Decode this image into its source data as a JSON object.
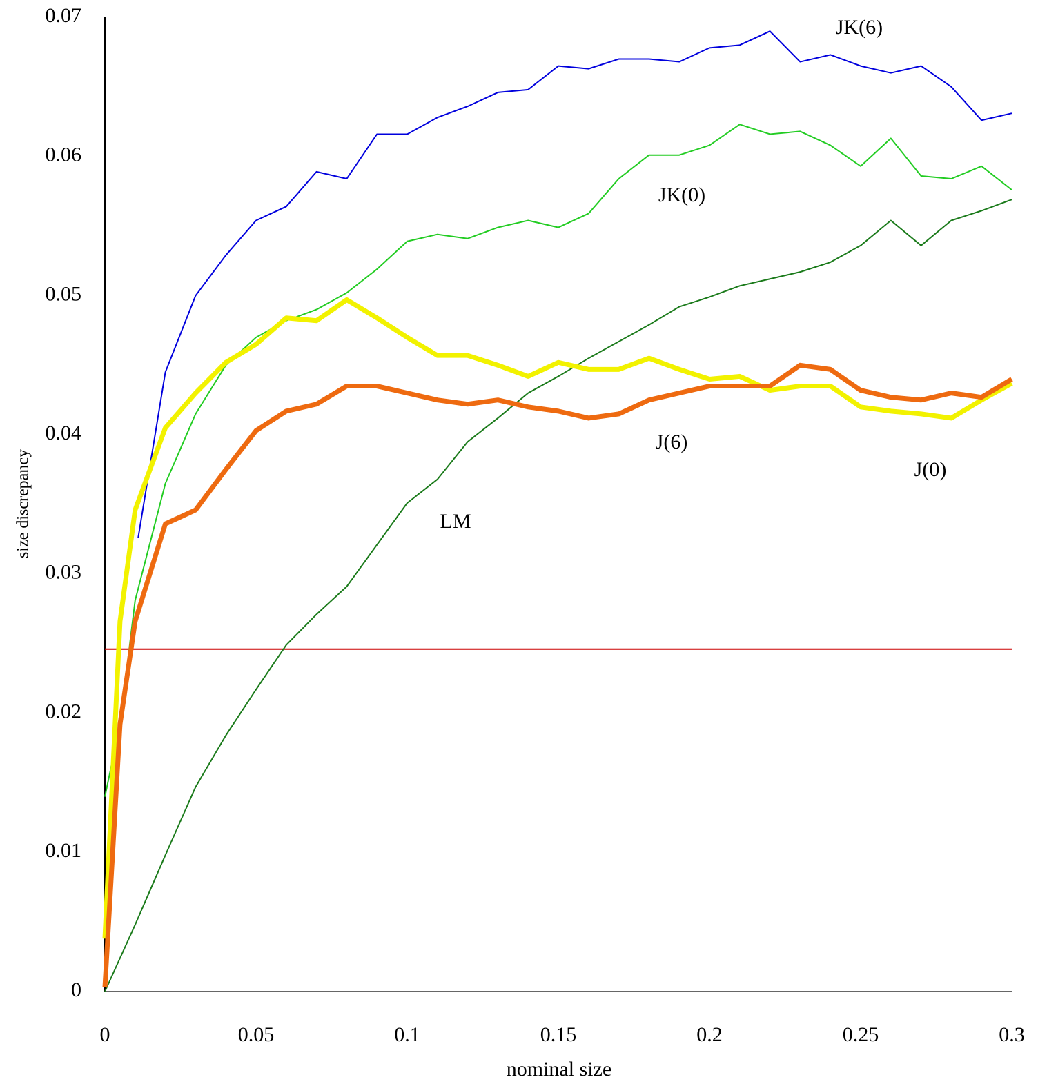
{
  "chart_data": {
    "type": "line",
    "xlabel": "nominal size",
    "ylabel": "size discrepancy",
    "xlim": [
      0,
      0.3
    ],
    "xticks": [
      0,
      0.05,
      0.1,
      0.15,
      0.2,
      0.25,
      0.3
    ],
    "ylim": [
      0,
      0.07
    ],
    "yticks": [
      0,
      0.01,
      0.02,
      0.03,
      0.04,
      0.05,
      0.06,
      0.07
    ],
    "hline": {
      "value": 0.0246,
      "color": "#cc0000"
    },
    "series": [
      {
        "name": "LM",
        "color": "#1a7a1a",
        "width": 2,
        "x": [
          0,
          0.01,
          0.02,
          0.03,
          0.04,
          0.05,
          0.06,
          0.07,
          0.08,
          0.09,
          0.1,
          0.11,
          0.12,
          0.13,
          0.14,
          0.15,
          0.16,
          0.17,
          0.18,
          0.19,
          0.2,
          0.21,
          0.22,
          0.23,
          0.24,
          0.25,
          0.26,
          0.27,
          0.28,
          0.29,
          0.3
        ],
        "values": [
          0,
          0.0048,
          0.0098,
          0.0147,
          0.0184,
          0.0217,
          0.0249,
          0.0271,
          0.0291,
          0.0321,
          0.0351,
          0.0368,
          0.0395,
          0.0412,
          0.043,
          0.0442,
          0.0455,
          0.0467,
          0.0479,
          0.0492,
          0.0499,
          0.0507,
          0.0512,
          0.0517,
          0.0524,
          0.0536,
          0.0554,
          0.0536,
          0.0554,
          0.0561,
          0.0569
        ]
      },
      {
        "name": "JK(0)",
        "color": "#22cc22",
        "width": 2,
        "x": [
          0,
          0.005,
          0.01,
          0.02,
          0.03,
          0.04,
          0.05,
          0.06,
          0.07,
          0.08,
          0.09,
          0.1,
          0.11,
          0.12,
          0.13,
          0.14,
          0.15,
          0.16,
          0.17,
          0.18,
          0.19,
          0.2,
          0.21,
          0.22,
          0.23,
          0.24,
          0.25,
          0.26,
          0.27,
          0.28,
          0.29,
          0.3
        ],
        "values": [
          0.014,
          0.0192,
          0.0281,
          0.0365,
          0.0415,
          0.045,
          0.047,
          0.0482,
          0.049,
          0.0502,
          0.0519,
          0.0539,
          0.0544,
          0.0541,
          0.0549,
          0.0554,
          0.0549,
          0.0559,
          0.0584,
          0.0601,
          0.0601,
          0.0608,
          0.0623,
          0.0616,
          0.0618,
          0.0608,
          0.0593,
          0.0613,
          0.0586,
          0.0584,
          0.0593,
          0.0576
        ]
      },
      {
        "name": "JK(6)",
        "color": "#0000dd",
        "width": 2,
        "x": [
          0.011,
          0.02,
          0.03,
          0.04,
          0.05,
          0.06,
          0.07,
          0.08,
          0.09,
          0.1,
          0.11,
          0.12,
          0.13,
          0.14,
          0.15,
          0.16,
          0.17,
          0.18,
          0.19,
          0.2,
          0.21,
          0.22,
          0.23,
          0.24,
          0.25,
          0.26,
          0.27,
          0.28,
          0.29,
          0.3
        ],
        "values": [
          0.0326,
          0.0445,
          0.05,
          0.0529,
          0.0554,
          0.0564,
          0.0589,
          0.0584,
          0.0616,
          0.0616,
          0.0628,
          0.0636,
          0.0646,
          0.0648,
          0.0665,
          0.0663,
          0.067,
          0.067,
          0.0668,
          0.0678,
          0.068,
          0.069,
          0.0668,
          0.0673,
          0.0665,
          0.066,
          0.0665,
          0.065,
          0.0626,
          0.0631
        ]
      },
      {
        "name": "J(0)",
        "color": "#f2f200",
        "width": 7,
        "x": [
          0,
          0.005,
          0.01,
          0.02,
          0.03,
          0.04,
          0.05,
          0.06,
          0.07,
          0.08,
          0.09,
          0.1,
          0.11,
          0.12,
          0.13,
          0.14,
          0.15,
          0.16,
          0.17,
          0.18,
          0.19,
          0.2,
          0.21,
          0.22,
          0.23,
          0.24,
          0.25,
          0.26,
          0.27,
          0.28,
          0.29,
          0.3
        ],
        "values": [
          0.0038,
          0.0266,
          0.0346,
          0.0405,
          0.043,
          0.0452,
          0.0465,
          0.0484,
          0.0482,
          0.0497,
          0.0484,
          0.047,
          0.0457,
          0.0457,
          0.045,
          0.0442,
          0.0452,
          0.0447,
          0.0447,
          0.0455,
          0.0447,
          0.044,
          0.0442,
          0.0432,
          0.0435,
          0.0435,
          0.042,
          0.0417,
          0.0415,
          0.0412,
          0.0425,
          0.0437
        ]
      },
      {
        "name": "J(6)",
        "color": "#ee6a10",
        "width": 7,
        "x": [
          0,
          0.005,
          0.01,
          0.02,
          0.03,
          0.04,
          0.05,
          0.06,
          0.07,
          0.08,
          0.09,
          0.1,
          0.11,
          0.12,
          0.13,
          0.14,
          0.15,
          0.16,
          0.17,
          0.18,
          0.19,
          0.2,
          0.21,
          0.22,
          0.23,
          0.24,
          0.25,
          0.26,
          0.27,
          0.28,
          0.29,
          0.3
        ],
        "values": [
          0.0003,
          0.0192,
          0.0266,
          0.0336,
          0.0346,
          0.0375,
          0.0403,
          0.0417,
          0.0422,
          0.0435,
          0.0435,
          0.043,
          0.0425,
          0.0422,
          0.0425,
          0.042,
          0.0417,
          0.0412,
          0.0415,
          0.0425,
          0.043,
          0.0435,
          0.0435,
          0.0435,
          0.045,
          0.0447,
          0.0432,
          0.0427,
          0.0425,
          0.043,
          0.0427,
          0.044
        ]
      }
    ]
  }
}
